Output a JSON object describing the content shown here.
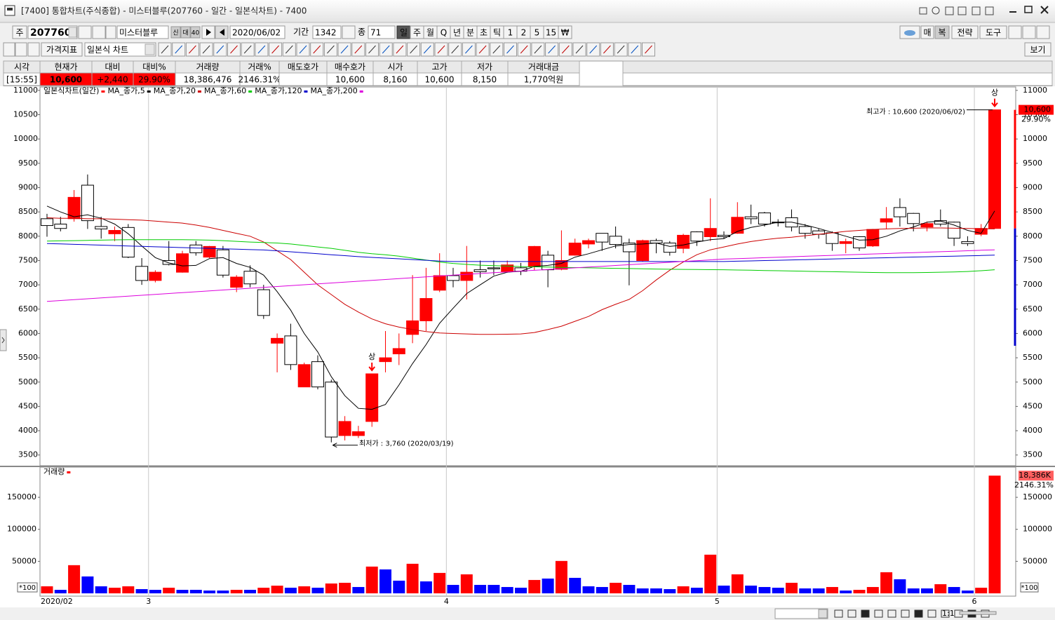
{
  "window": {
    "title": "[7400] 통합차트(주식종합) - 미스터블루(207760 - 일간 - 일본식차트) - 7400"
  },
  "toolbar": {
    "market": "주",
    "code": "207760",
    "name": "미스터블루",
    "small_buttons": [
      "신",
      "대",
      "40"
    ],
    "date": "2020/06/02",
    "period_label": "기간",
    "period": "1342",
    "count_label": "종",
    "count": "71",
    "periods": [
      "일",
      "주",
      "월",
      "Q",
      "년",
      "분",
      "초",
      "틱",
      "1",
      "2",
      "5",
      "15",
      "₩"
    ],
    "right_buttons": [
      "매",
      "복",
      "전략",
      "도구"
    ],
    "indicator_button": "가격지표",
    "chart_style": "일본식 차트",
    "view_button": "보기"
  },
  "quote_table": {
    "columns": [
      {
        "header": "시각",
        "value": "[15:55]"
      },
      {
        "header": "현재가",
        "value": "10,600",
        "color": "#ffffff",
        "background": "#ff0000"
      },
      {
        "header": "대비",
        "value": "+2,440",
        "color": "#ffffff",
        "background": "#ff0000"
      },
      {
        "header": "대비%",
        "value": "29.90%",
        "color": "#ffffff",
        "background": "#ff0000"
      },
      {
        "header": "거래량",
        "value": "18,386,476"
      },
      {
        "header": "거래%",
        "value": "2146.31%",
        "color": "#ff0000"
      },
      {
        "header": "매도호가"
      },
      {
        "header": "매수호가",
        "value": "10,600"
      },
      {
        "header": "시가",
        "value": "8,160"
      },
      {
        "header": "고가",
        "value": "10,600",
        "color": "#ff0000"
      },
      {
        "header": "저가",
        "value": "8,150",
        "color": "#0000ff"
      },
      {
        "header": "거래대금",
        "value": "1,770억원"
      }
    ]
  },
  "scroll": {
    "zoom_label": "1:1"
  },
  "chart_data": [
    {
      "type": "candlestick",
      "title": "일본식차트(일간)",
      "legend_color": "#ff0000",
      "categories": [
        "2020/02",
        null,
        null,
        null,
        null,
        null,
        null,
        null,
        "3",
        null,
        null,
        null,
        null,
        null,
        null,
        null,
        null,
        null,
        null,
        null,
        null,
        null,
        null,
        null,
        null,
        null,
        null,
        null,
        null,
        null,
        "4",
        null,
        null,
        null,
        null,
        null,
        null,
        null,
        null,
        null,
        null,
        null,
        null,
        null,
        null,
        null,
        null,
        null,
        null,
        null,
        "5",
        null,
        null,
        null,
        null,
        null,
        null,
        null,
        null,
        null,
        null,
        null,
        null,
        null,
        null,
        null,
        null,
        null,
        null,
        "6",
        null
      ],
      "open": [
        8360,
        8250,
        8360,
        9050,
        8200,
        8050,
        8180,
        7380,
        7090,
        7500,
        7260,
        7820,
        7570,
        7720,
        6950,
        7280,
        6900,
        5800,
        5950,
        4900,
        5420,
        5000,
        3900,
        3900,
        4190,
        5420,
        5580,
        5980,
        6260,
        6890,
        7190,
        7090,
        7310,
        7350,
        7270,
        7350,
        7370,
        7610,
        7320,
        7610,
        7840,
        8060,
        8000,
        7860,
        7500,
        7910,
        7860,
        7750,
        8090,
        7990,
        8020,
        8060,
        8400,
        8480,
        8290,
        8380,
        8200,
        8110,
        8070,
        7850,
        7990,
        7800,
        8290,
        8590,
        8470,
        8190,
        8320,
        8290,
        7890,
        8040,
        8160
      ],
      "high": [
        8460,
        8400,
        8950,
        9270,
        8400,
        8200,
        8250,
        7550,
        7300,
        7900,
        7700,
        7900,
        7800,
        7800,
        7200,
        7400,
        7000,
        6000,
        6200,
        5400,
        5550,
        5050,
        4300,
        4100,
        5170,
        6050,
        6000,
        7200,
        7350,
        7650,
        7350,
        7800,
        7500,
        7500,
        7500,
        7450,
        7800,
        7700,
        8120,
        7950,
        7950,
        8060,
        8200,
        7950,
        7930,
        7950,
        7900,
        8050,
        8100,
        8780,
        8100,
        8700,
        8650,
        8500,
        8350,
        8550,
        8250,
        8150,
        8100,
        7950,
        8000,
        8150,
        8600,
        8780,
        8480,
        8300,
        8550,
        8300,
        8000,
        8250,
        10600
      ],
      "low": [
        7990,
        8100,
        8300,
        8150,
        7950,
        7900,
        7550,
        7000,
        7050,
        7400,
        7250,
        7600,
        7550,
        7150,
        6850,
        6950,
        6300,
        5200,
        5250,
        4900,
        4850,
        3760,
        3800,
        3850,
        4080,
        5200,
        5350,
        5800,
        6050,
        6850,
        6950,
        6700,
        7150,
        7200,
        7250,
        7200,
        7300,
        6950,
        7300,
        7600,
        7750,
        7700,
        7750,
        6990,
        7480,
        7650,
        7600,
        7650,
        7800,
        7900,
        7950,
        8050,
        8250,
        8200,
        8200,
        8100,
        7950,
        7950,
        7700,
        7650,
        7700,
        7780,
        8150,
        8200,
        8100,
        8100,
        8200,
        7800,
        7800,
        8000,
        8150
      ],
      "close": [
        8220,
        8160,
        8800,
        8320,
        8150,
        8120,
        7570,
        7090,
        7260,
        7420,
        7640,
        7660,
        7790,
        7200,
        7160,
        7020,
        6370,
        5900,
        5360,
        5360,
        4900,
        3870,
        4190,
        3980,
        5170,
        5500,
        5690,
        6260,
        6720,
        7190,
        7090,
        7260,
        7270,
        7330,
        7410,
        7280,
        7790,
        7310,
        7500,
        7860,
        7910,
        7880,
        7830,
        7680,
        7910,
        7860,
        7670,
        8020,
        7900,
        8160,
        7990,
        8390,
        8360,
        8250,
        8280,
        8190,
        8060,
        8040,
        7850,
        7890,
        7760,
        8140,
        8360,
        8400,
        8260,
        8260,
        8250,
        7960,
        7850,
        8160,
        10600
      ],
      "up_color": "#ff0000",
      "down_color": "#ffffff",
      "lines": [
        {
          "name": "MA_종가,5",
          "color": "#000000",
          "values": [
            8620,
            8500,
            8400,
            8440,
            8370,
            8250,
            8050,
            7800,
            7560,
            7450,
            7390,
            7400,
            7540,
            7560,
            7440,
            7360,
            7200,
            6860,
            6480,
            6000,
            5620,
            5110,
            4720,
            4460,
            4440,
            4540,
            4940,
            5380,
            5770,
            6210,
            6520,
            6820,
            7000,
            7180,
            7260,
            7280,
            7380,
            7400,
            7440,
            7570,
            7640,
            7720,
            7800,
            7830,
            7840,
            7860,
            7790,
            7820,
            7880,
            7930,
            7950,
            8100,
            8180,
            8230,
            8290,
            8290,
            8230,
            8160,
            8080,
            8000,
            7920,
            7930,
            8000,
            8110,
            8190,
            8290,
            8310,
            8230,
            8120,
            8060,
            8520
          ]
        },
        {
          "name": "MA_종가,20",
          "color": "#cc0000",
          "values": [
            8380,
            8370,
            8370,
            8360,
            8360,
            8350,
            8340,
            8330,
            8310,
            8290,
            8270,
            8230,
            8180,
            8120,
            8060,
            8000,
            7880,
            7700,
            7520,
            7260,
            7000,
            6800,
            6600,
            6440,
            6300,
            6200,
            6130,
            6080,
            6040,
            6010,
            6000,
            5990,
            5980,
            5980,
            5985,
            5990,
            6020,
            6080,
            6150,
            6250,
            6350,
            6490,
            6600,
            6700,
            6880,
            7100,
            7300,
            7470,
            7620,
            7720,
            7780,
            7840,
            7890,
            7930,
            7960,
            7980,
            8010,
            8040,
            8070,
            8100,
            8120,
            8140,
            8150,
            8160,
            8165,
            8170,
            8170,
            8165,
            8160,
            8155,
            8150
          ]
        },
        {
          "name": "MA_종가,60",
          "color": "#00cc00",
          "values": [
            7900,
            7905,
            7910,
            7915,
            7920,
            7925,
            7928,
            7930,
            7930,
            7930,
            7930,
            7925,
            7920,
            7910,
            7895,
            7880,
            7870,
            7860,
            7840,
            7810,
            7780,
            7750,
            7710,
            7670,
            7640,
            7620,
            7590,
            7550,
            7510,
            7470,
            7440,
            7420,
            7405,
            7395,
            7385,
            7375,
            7370,
            7365,
            7360,
            7355,
            7350,
            7345,
            7340,
            7335,
            7330,
            7325,
            7320,
            7318,
            7315,
            7312,
            7310,
            7305,
            7300,
            7295,
            7290,
            7285,
            7280,
            7275,
            7270,
            7265,
            7260,
            7255,
            7250,
            7250,
            7252,
            7255,
            7260,
            7265,
            7275,
            7290,
            7310
          ]
        },
        {
          "name": "MA_종가,120",
          "color": "#0000cc",
          "values": [
            7850,
            7842,
            7833,
            7825,
            7817,
            7808,
            7800,
            7792,
            7783,
            7775,
            7767,
            7758,
            7750,
            7742,
            7733,
            7725,
            7717,
            7700,
            7680,
            7660,
            7640,
            7620,
            7600,
            7580,
            7565,
            7550,
            7535,
            7520,
            7505,
            7490,
            7480,
            7480,
            7480,
            7480,
            7480,
            7480,
            7480,
            7480,
            7480,
            7480,
            7480,
            7480,
            7480,
            7480,
            7480,
            7480,
            7480,
            7480,
            7480,
            7480,
            7480,
            7486,
            7493,
            7499,
            7506,
            7512,
            7519,
            7525,
            7532,
            7538,
            7545,
            7551,
            7558,
            7564,
            7571,
            7577,
            7584,
            7590,
            7597,
            7603,
            7610
          ]
        },
        {
          "name": "MA_종가,200",
          "color": "#dd00dd",
          "values": [
            6660,
            6678,
            6696,
            6714,
            6732,
            6750,
            6768,
            6786,
            6804,
            6822,
            6840,
            6858,
            6876,
            6894,
            6912,
            6930,
            6948,
            6966,
            6984,
            7002,
            7020,
            7038,
            7056,
            7074,
            7092,
            7110,
            7128,
            7146,
            7164,
            7182,
            7200,
            7217,
            7233,
            7250,
            7266,
            7283,
            7299,
            7316,
            7332,
            7349,
            7365,
            7382,
            7398,
            7415,
            7431,
            7448,
            7464,
            7481,
            7497,
            7514,
            7530,
            7540,
            7549,
            7559,
            7568,
            7578,
            7587,
            7597,
            7606,
            7616,
            7625,
            7635,
            7644,
            7654,
            7663,
            7673,
            7682,
            7692,
            7701,
            7711,
            7720
          ]
        }
      ],
      "ylim": [
        3280,
        11070
      ],
      "yticks": [
        3500,
        4000,
        4500,
        5000,
        5500,
        6000,
        6500,
        7000,
        7500,
        8000,
        8500,
        9000,
        9500,
        10000,
        10500,
        11000
      ],
      "annotations": {
        "high": "최고가 : 10,600 (2020/06/02)",
        "low": "최저가 : 3,760 (2020/03/19)",
        "limit_up": [
          "상",
          "상"
        ]
      },
      "last_labels": [
        "10,600",
        "29.90%"
      ]
    },
    {
      "type": "bar",
      "series": [
        {
          "name": "거래량",
          "color": "#ff0000",
          "values": [
            11000,
            5500,
            44000,
            26400,
            11000,
            8800,
            11000,
            6600,
            5500,
            8800,
            5500,
            5500,
            4400,
            4400,
            5500,
            5500,
            8800,
            12000,
            8800,
            11000,
            8800,
            15400,
            16500,
            9900,
            41800,
            37400,
            19800,
            46200,
            18700,
            31900,
            13200,
            29700,
            13200,
            13200,
            9900,
            8800,
            20900,
            23100,
            50600,
            24200,
            11000,
            9900,
            16500,
            13200,
            7700,
            7700,
            6600,
            11000,
            8800,
            60400,
            12100,
            29700,
            12100,
            9900,
            8800,
            16500,
            7700,
            7700,
            9900,
            4400,
            5500,
            9900,
            33000,
            22000,
            7700,
            7700,
            14300,
            9900,
            4400,
            8800,
            183865
          ]
        }
      ],
      "bar_colors": [
        "#ff0000",
        "#0000ff",
        "#ff0000",
        "#0000ff",
        "#0000ff",
        "#ff0000",
        "#ff0000",
        "#0000ff",
        "#0000ff",
        "#ff0000",
        "#0000ff",
        "#0000ff",
        "#0000ff",
        "#0000ff",
        "#ff0000",
        "#0000ff",
        "#ff0000",
        "#ff0000",
        "#0000ff",
        "#ff0000",
        "#0000ff",
        "#ff0000",
        "#ff0000",
        "#0000ff",
        "#ff0000",
        "#0000ff",
        "#0000ff",
        "#ff0000",
        "#0000ff",
        "#ff0000",
        "#0000ff",
        "#ff0000",
        "#0000ff",
        "#0000ff",
        "#0000ff",
        "#0000ff",
        "#ff0000",
        "#0000ff",
        "#ff0000",
        "#0000ff",
        "#0000ff",
        "#0000ff",
        "#ff0000",
        "#0000ff",
        "#0000ff",
        "#0000ff",
        "#0000ff",
        "#ff0000",
        "#0000ff",
        "#ff0000",
        "#0000ff",
        "#ff0000",
        "#0000ff",
        "#0000ff",
        "#0000ff",
        "#ff0000",
        "#0000ff",
        "#0000ff",
        "#ff0000",
        "#0000ff",
        "#ff0000",
        "#ff0000",
        "#ff0000",
        "#0000ff",
        "#0000ff",
        "#0000ff",
        "#ff0000",
        "#0000ff",
        "#0000ff",
        "#ff0000",
        "#ff0000"
      ],
      "ylim": [
        0,
        195000
      ],
      "yticks": [
        50000,
        100000,
        150000
      ],
      "unit_label": "*100",
      "last_labels": [
        "18,386K",
        "2146.31%"
      ]
    }
  ]
}
